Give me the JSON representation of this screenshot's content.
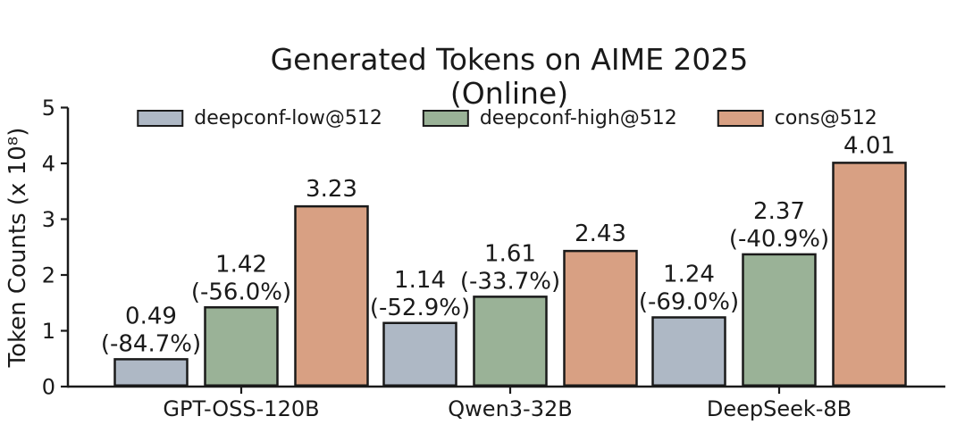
{
  "page": {
    "background": "#ffffff"
  },
  "chart_data": {
    "type": "bar",
    "title": "Generated Tokens on AIME 2025",
    "subtitle": "(Online)",
    "ylabel": "Token Counts (x 10⁸)",
    "xlabel": "",
    "ylim": [
      0,
      5
    ],
    "yticks": [
      0,
      1,
      2,
      3,
      4,
      5
    ],
    "grid": false,
    "legend_position": "top",
    "axis_color": "#1a1a1a",
    "text_color": "#1a1a1a",
    "bar_edge_color": "#1a1a1a",
    "categories": [
      "GPT-OSS-120B",
      "Qwen3-32B",
      "DeepSeek-8B"
    ],
    "series": [
      {
        "name": "deepconf-low@512",
        "color": "#aeb8c5",
        "values": [
          0.49,
          1.14,
          1.24
        ],
        "labels": [
          "0.49",
          "1.14",
          "1.24"
        ],
        "annotations": [
          "(-84.7%)",
          "(-52.9%)",
          "(-69.0%)"
        ]
      },
      {
        "name": "deepconf-high@512",
        "color": "#9ab297",
        "values": [
          1.42,
          1.61,
          2.37
        ],
        "labels": [
          "1.42",
          "1.61",
          "2.37"
        ],
        "annotations": [
          "(-56.0%)",
          "(-33.7%)",
          "(-40.9%)"
        ]
      },
      {
        "name": "cons@512",
        "color": "#d8a083",
        "values": [
          3.23,
          2.43,
          4.01
        ],
        "labels": [
          "3.23",
          "2.43",
          "4.01"
        ],
        "annotations": [
          "",
          "",
          ""
        ]
      }
    ]
  }
}
